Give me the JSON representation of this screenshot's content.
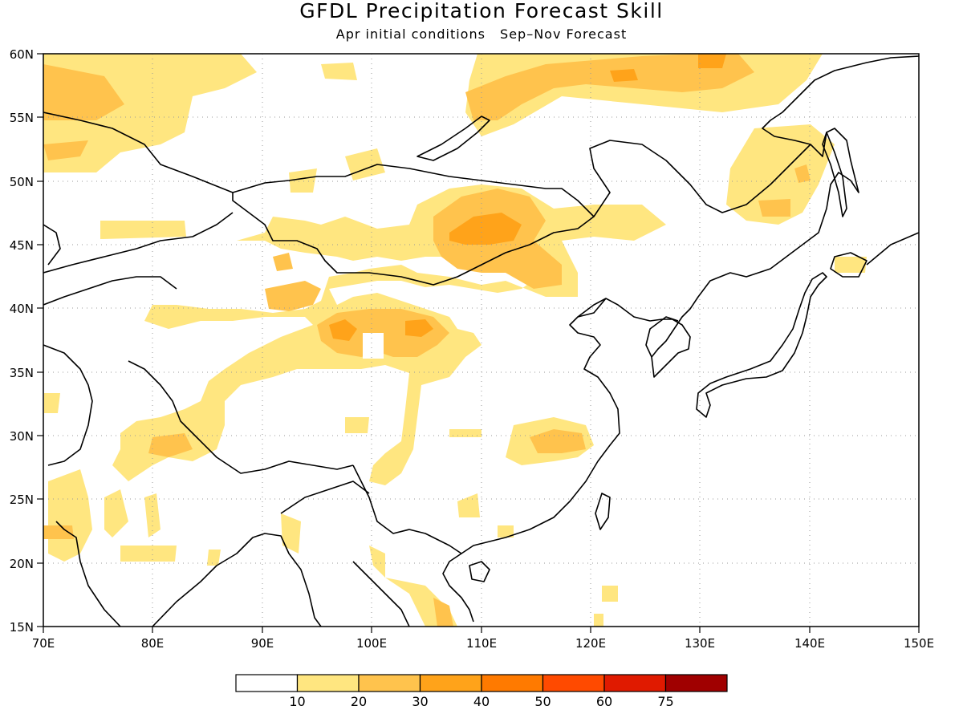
{
  "title": "GFDL Precipitation Forecast Skill",
  "subtitle": {
    "left": "Apr initial conditions",
    "right": "Sep–Nov Forecast"
  },
  "map": {
    "lon_range": [
      70,
      150
    ],
    "lat_range": [
      15,
      60
    ],
    "lon_ticks": [
      "70E",
      "80E",
      "90E",
      "100E",
      "110E",
      "120E",
      "130E",
      "140E",
      "150E"
    ],
    "lat_ticks": [
      "15N",
      "20N",
      "25N",
      "30N",
      "35N",
      "40N",
      "45N",
      "50N",
      "55N",
      "60N"
    ],
    "grid": "dotted"
  },
  "colorbar": {
    "labels": [
      "10",
      "20",
      "30",
      "40",
      "50",
      "60",
      "75"
    ],
    "colors": [
      "#ffffff",
      "#ffe680",
      "#ffc34d",
      "#ffa31a",
      "#ff7a00",
      "#ff4a00",
      "#e01a00",
      "#a00000"
    ]
  },
  "colors": {
    "level_10": "#ffe680",
    "level_20": "#ffc34d",
    "level_30": "#ffa31a"
  }
}
